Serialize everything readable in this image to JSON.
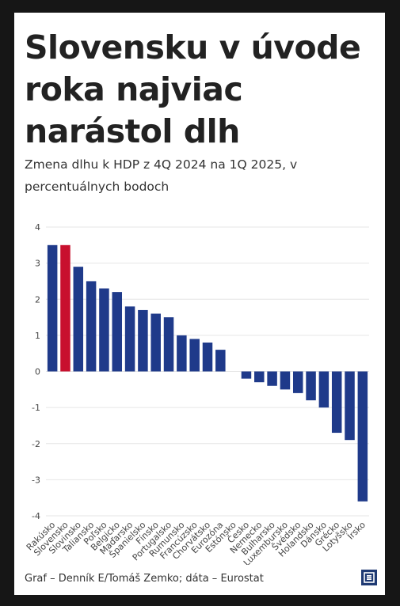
{
  "title": "Slovensku v úvode roka najviac narástol dlh",
  "subtitle": "Zmena dlhu k HDP z 4Q 2024 na 1Q 2025, v percentuálnych bodoch",
  "source": "Graf – Denník E/Tomáš Zemko; dáta – Eurostat",
  "logo_icon": "denník-e-logo-icon",
  "colors": {
    "bar": "#1f3a8a",
    "highlight": "#c8102e",
    "grid": "#e6e6e6",
    "axis_text": "#444444"
  },
  "chart_data": {
    "type": "bar",
    "categories": [
      "Rakúsko",
      "Slovensko",
      "Slovinsko",
      "Taliansko",
      "Poľsko",
      "Belgicko",
      "Maďarsko",
      "Španielsko",
      "Fínsko",
      "Portugalsko",
      "Rumunsko",
      "Francúzsko",
      "Chorvátsko",
      "Eurozóna",
      "Estónsko",
      "Česko",
      "Nemecko",
      "Bulharsko",
      "Luxembursko",
      "Švédsko",
      "Holandsko",
      "Dánsko",
      "Grécko",
      "Lotyšsko",
      "Írsko"
    ],
    "values": [
      3.5,
      3.5,
      2.9,
      2.5,
      2.3,
      2.2,
      1.8,
      1.7,
      1.6,
      1.5,
      1.0,
      0.9,
      0.8,
      0.6,
      0.0,
      -0.2,
      -0.3,
      -0.4,
      -0.5,
      -0.6,
      -0.8,
      -1.0,
      -1.7,
      -1.9,
      -3.6
    ],
    "highlight": "Slovensko",
    "ylim": [
      -4,
      4
    ],
    "yticks": [
      4,
      3,
      2,
      1,
      0,
      -1,
      -2,
      -3,
      -4
    ],
    "grid": true,
    "legend": "none",
    "xlabel": "",
    "ylabel": ""
  }
}
